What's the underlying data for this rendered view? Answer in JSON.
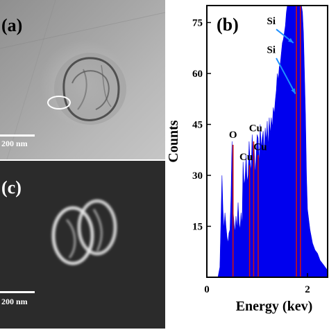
{
  "panel_a": {
    "label": "(a)",
    "scalebar_text": "200 nm"
  },
  "panel_c": {
    "label": "(c)",
    "scalebar_text": "200 nm"
  },
  "chart_data": {
    "type": "area",
    "panel_label": "(b)",
    "xlabel": "Energy (kev)",
    "ylabel": "Counts",
    "xlim": [
      0,
      2.4
    ],
    "ylim": [
      0,
      80
    ],
    "xticks": [
      0,
      2
    ],
    "yticks": [
      15,
      30,
      45,
      60,
      75
    ],
    "series_color": "#0000ee",
    "marker_color": "#cc1111",
    "spectrum": {
      "x": [
        0.22,
        0.26,
        0.3,
        0.32,
        0.34,
        0.36,
        0.38,
        0.4,
        0.42,
        0.44,
        0.46,
        0.48,
        0.5,
        0.52,
        0.54,
        0.56,
        0.58,
        0.6,
        0.62,
        0.64,
        0.66,
        0.68,
        0.7,
        0.72,
        0.74,
        0.76,
        0.78,
        0.8,
        0.82,
        0.84,
        0.86,
        0.88,
        0.9,
        0.92,
        0.94,
        0.96,
        0.98,
        1.0,
        1.02,
        1.04,
        1.06,
        1.08,
        1.1,
        1.12,
        1.14,
        1.16,
        1.18,
        1.2,
        1.22,
        1.24,
        1.26,
        1.28,
        1.3,
        1.32,
        1.34,
        1.36,
        1.38,
        1.4,
        1.42,
        1.44,
        1.46,
        1.48,
        1.5,
        1.52,
        1.54,
        1.56,
        1.58,
        1.6,
        1.62,
        1.64,
        1.66,
        1.68,
        1.7,
        1.72,
        1.74,
        1.76,
        1.78,
        1.8,
        1.82,
        1.84,
        1.86,
        1.88,
        1.9,
        1.92,
        1.94,
        1.96,
        1.98,
        2.0,
        2.05,
        2.1,
        2.15,
        2.2,
        2.25,
        2.3,
        2.35,
        2.4
      ],
      "y": [
        0,
        3,
        30,
        20,
        14,
        19,
        15,
        12,
        10,
        13,
        14,
        24,
        40,
        20,
        16,
        13,
        18,
        14,
        22,
        16,
        14,
        19,
        15,
        34,
        27,
        29,
        36,
        28,
        30,
        40,
        34,
        31,
        42,
        36,
        38,
        30,
        36,
        42,
        41,
        33,
        45,
        38,
        41,
        43,
        36,
        44,
        40,
        46,
        38,
        47,
        42,
        47,
        44,
        50,
        48,
        52,
        55,
        60,
        58,
        62,
        63,
        66,
        69,
        70,
        72,
        74,
        78,
        80,
        80,
        80,
        80,
        80,
        80,
        80,
        80,
        80,
        80,
        80,
        80,
        80,
        80,
        80,
        78,
        72,
        60,
        48,
        30,
        20,
        14,
        10,
        8,
        7,
        5,
        4,
        3,
        2
      ]
    },
    "peak_markers": [
      {
        "x": 0.52,
        "y": 39
      },
      {
        "x": 0.85,
        "y": 33
      },
      {
        "x": 0.93,
        "y": 40
      },
      {
        "x": 1.02,
        "y": 36
      },
      {
        "x": 1.78,
        "y": 80
      },
      {
        "x": 1.86,
        "y": 80
      }
    ],
    "annotations": [
      {
        "text": "O",
        "x": 0.52,
        "y": 41
      },
      {
        "text": "Cu",
        "x": 0.78,
        "y": 34.5
      },
      {
        "text": "Cu",
        "x": 0.97,
        "y": 43
      },
      {
        "text": "Cu",
        "x": 1.06,
        "y": 37.5
      },
      {
        "text": "Si",
        "x": 1.28,
        "y": 74.5
      },
      {
        "text": "Si",
        "x": 1.28,
        "y": 66
      }
    ],
    "arrows": [
      {
        "from": [
          1.38,
          73
        ],
        "to": [
          1.72,
          69
        ]
      },
      {
        "from": [
          1.38,
          64.5
        ],
        "to": [
          1.76,
          54
        ]
      }
    ]
  }
}
